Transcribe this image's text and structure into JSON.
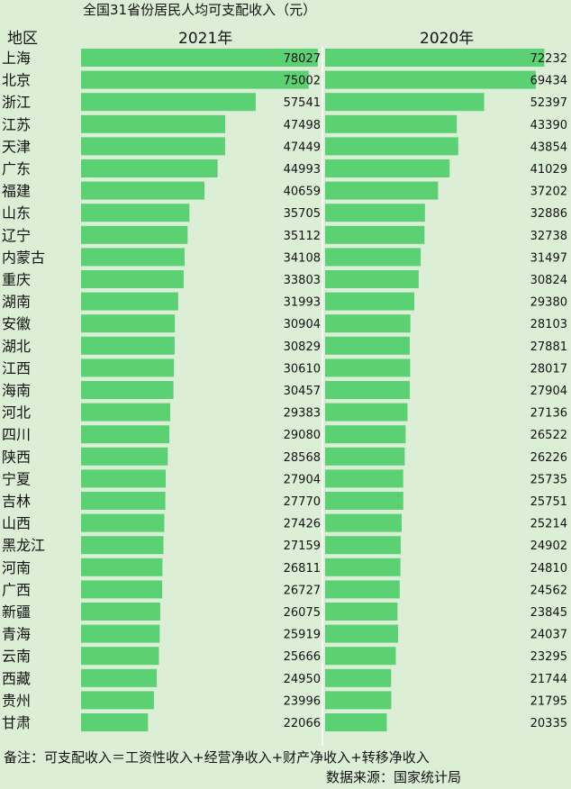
{
  "title": "全国31省份居民人均可支配收入（元）",
  "region_header": "地区",
  "note": "备注：可支配收入＝工资性收入+经营净收入+财产净收入+转移净收入",
  "source": "数据来源：国家统计局",
  "colors": {
    "bar": "#5cd173",
    "background": "#dcefd6",
    "divider": "#ffffff"
  },
  "chart_data": {
    "type": "bar",
    "orientation": "horizontal",
    "title": "全国31省份居民人均可支配收入（元）",
    "categories": [
      "上海",
      "北京",
      "浙江",
      "江苏",
      "天津",
      "广东",
      "福建",
      "山东",
      "辽宁",
      "内蒙古",
      "重庆",
      "湖南",
      "安徽",
      "湖北",
      "江西",
      "海南",
      "河北",
      "四川",
      "陕西",
      "宁夏",
      "吉林",
      "山西",
      "黑龙江",
      "河南",
      "广西",
      "新疆",
      "青海",
      "云南",
      "西藏",
      "贵州",
      "甘肃"
    ],
    "series": [
      {
        "name": "2021年",
        "values": [
          78027,
          75002,
          57541,
          47498,
          47449,
          44993,
          40659,
          35705,
          35112,
          34108,
          33803,
          31993,
          30904,
          30829,
          30610,
          30457,
          29383,
          29080,
          28568,
          27904,
          27770,
          27426,
          27159,
          26811,
          26727,
          26075,
          25919,
          25666,
          24950,
          23996,
          22066
        ]
      },
      {
        "name": "2020年",
        "values": [
          72232,
          69434,
          52397,
          43390,
          43854,
          41029,
          37202,
          32886,
          32738,
          31497,
          30824,
          29380,
          28103,
          27881,
          28017,
          27904,
          27136,
          26522,
          26226,
          25735,
          25751,
          25214,
          24902,
          24810,
          24562,
          23845,
          24037,
          23295,
          21744,
          21795,
          20335
        ]
      }
    ],
    "legend": "none",
    "grid": false
  }
}
